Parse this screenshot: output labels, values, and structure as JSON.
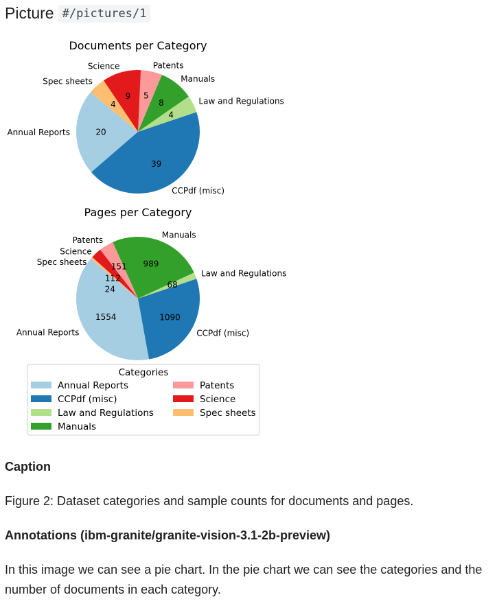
{
  "header": {
    "label": "Picture",
    "ref": "#/pictures/1"
  },
  "chart_data": [
    {
      "type": "pie",
      "title": "Documents per Category",
      "startangle": 140,
      "categories": [
        "Annual Reports",
        "CCPdf (misc)",
        "Law and Regulations",
        "Manuals",
        "Patents",
        "Science",
        "Spec sheets"
      ],
      "values": [
        20,
        39,
        4,
        8,
        5,
        9,
        4
      ]
    },
    {
      "type": "pie",
      "title": "Pages per Category",
      "startangle": 140,
      "categories": [
        "Annual Reports",
        "CCPdf (misc)",
        "Law and Regulations",
        "Manuals",
        "Patents",
        "Science",
        "Spec sheets"
      ],
      "values": [
        1554,
        1090,
        68,
        989,
        151,
        112,
        24
      ]
    }
  ],
  "colors": [
    "#a6cee3",
    "#1f78b4",
    "#b2df8a",
    "#33a02c",
    "#fb9a99",
    "#e31a1c",
    "#fdbf6f"
  ],
  "legend": {
    "title": "Categories",
    "placement": "bottom",
    "items": [
      "Annual Reports",
      "CCPdf (misc)",
      "Law and Regulations",
      "Manuals",
      "Patents",
      "Science",
      "Spec sheets"
    ]
  },
  "caption": {
    "heading": "Caption",
    "text": "Figure 2: Dataset categories and sample counts for documents and pages."
  },
  "annotations": {
    "heading": "Annotations (ibm-granite/granite-vision-3.1-2b-preview)",
    "text": "In this image we can see a pie chart. In the pie chart we can see the categories and the number of documents in each category."
  }
}
